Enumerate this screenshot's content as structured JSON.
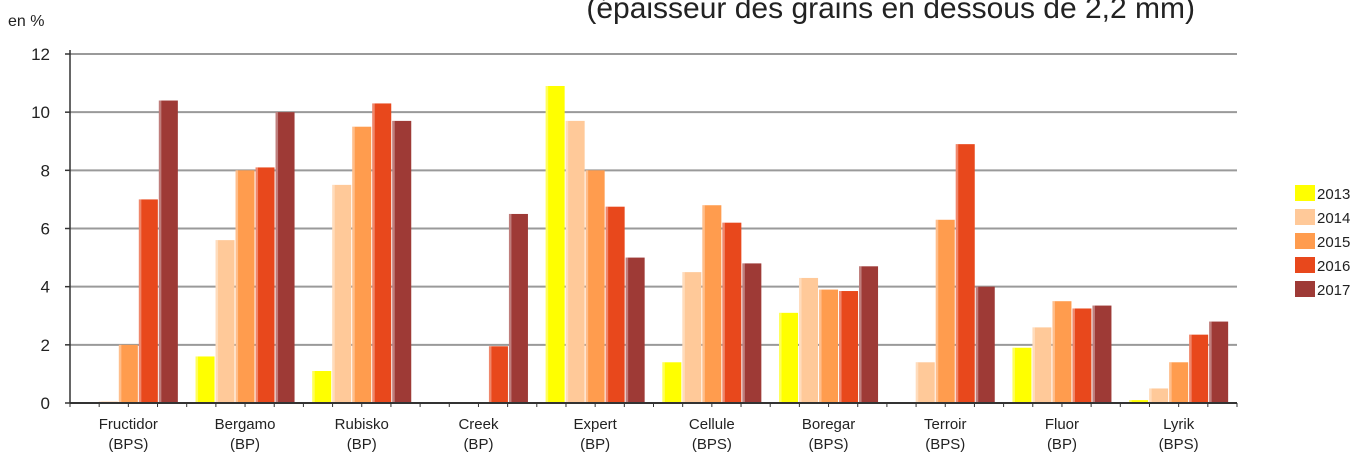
{
  "chart_data": {
    "type": "bar",
    "title": "(épaisseur des grains en dessous de 2,2 mm)",
    "ylabel": "en %",
    "ylim": [
      0,
      12
    ],
    "yticks": [
      0,
      2,
      4,
      6,
      8,
      10,
      12
    ],
    "grid": true,
    "legend_position": "right",
    "categories": [
      {
        "name": "Fructidor",
        "group": "(BPS)"
      },
      {
        "name": "Bergamo",
        "group": "(BP)"
      },
      {
        "name": "Rubisko",
        "group": "(BP)"
      },
      {
        "name": "Creek",
        "group": "(BP)"
      },
      {
        "name": "Expert",
        "group": "(BP)"
      },
      {
        "name": "Cellule",
        "group": "(BPS)"
      },
      {
        "name": "Boregar",
        "group": "(BPS)"
      },
      {
        "name": "Terroir",
        "group": "(BPS)"
      },
      {
        "name": "Fluor",
        "group": "(BP)"
      },
      {
        "name": "Lyrik",
        "group": "(BPS)"
      }
    ],
    "series": [
      {
        "name": "2013",
        "color": "#ffff00",
        "values": [
          0,
          1.6,
          1.1,
          0,
          10.9,
          1.4,
          3.1,
          0,
          1.9,
          0.1
        ]
      },
      {
        "name": "2014",
        "color": "#ffc999",
        "values": [
          0.05,
          5.6,
          7.5,
          0,
          9.7,
          4.5,
          4.3,
          1.4,
          2.6,
          0.5
        ]
      },
      {
        "name": "2015",
        "color": "#ff9c4e",
        "values": [
          2.0,
          8.0,
          9.5,
          0,
          8.0,
          6.8,
          3.9,
          6.3,
          3.5,
          1.4
        ]
      },
      {
        "name": "2016",
        "color": "#e8481c",
        "values": [
          7.0,
          8.1,
          10.3,
          1.95,
          6.75,
          6.2,
          3.85,
          8.9,
          3.25,
          2.35
        ]
      },
      {
        "name": "2017",
        "color": "#9e3a36",
        "values": [
          10.4,
          10.0,
          9.7,
          6.5,
          5.0,
          4.8,
          4.7,
          4.0,
          3.35,
          2.8
        ]
      }
    ]
  }
}
